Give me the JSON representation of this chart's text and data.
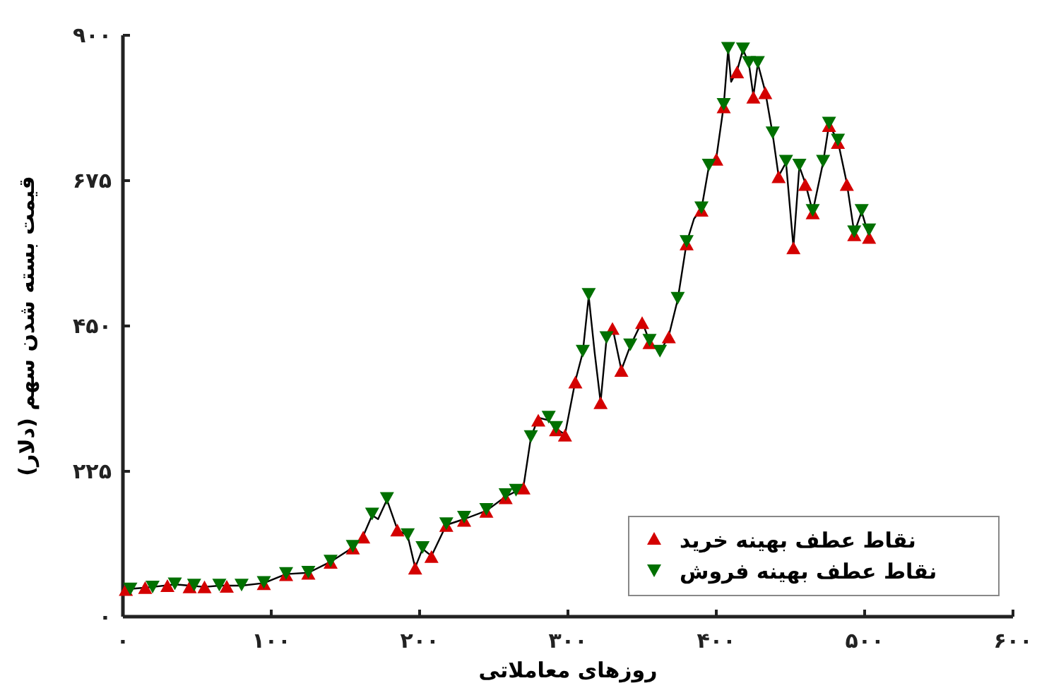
{
  "chart_data": {
    "type": "line",
    "xlabel": "روزهای معاملاتی",
    "ylabel": "قیمت بسته شدن سهم (دلار)",
    "xlim": [
      0,
      600
    ],
    "ylim": [
      0,
      900
    ],
    "xticks": [
      {
        "value": 0,
        "label": "۰"
      },
      {
        "value": 100,
        "label": "۱۰۰"
      },
      {
        "value": 200,
        "label": "۲۰۰"
      },
      {
        "value": 300,
        "label": "۳۰۰"
      },
      {
        "value": 400,
        "label": "۴۰۰"
      },
      {
        "value": 500,
        "label": "۵۰۰"
      },
      {
        "value": 600,
        "label": "۶۰۰"
      }
    ],
    "yticks": [
      {
        "value": 0,
        "label": "۰"
      },
      {
        "value": 225,
        "label": "۲۲۵"
      },
      {
        "value": 450,
        "label": "۴۵۰"
      },
      {
        "value": 675,
        "label": "۶۷۵"
      },
      {
        "value": 900,
        "label": "۹۰۰"
      }
    ],
    "grid": false,
    "legend": "bottom right",
    "series": [
      {
        "color": "#000000",
        "marker": "none",
        "x": [
          0,
          10,
          20,
          35,
          45,
          55,
          65,
          80,
          95,
          110,
          125,
          140,
          155,
          162,
          168,
          172,
          178,
          185,
          192,
          197,
          202,
          208,
          218,
          230,
          245,
          258,
          265,
          270,
          275,
          280,
          287,
          292,
          298,
          305,
          310,
          314,
          318,
          322,
          326,
          330,
          336,
          342,
          350,
          355,
          362,
          368,
          374,
          380,
          385,
          390,
          395,
          400,
          405,
          408,
          410,
          414,
          418,
          422,
          425,
          428,
          433,
          438,
          442,
          447,
          452,
          456,
          460,
          465,
          472,
          476,
          482,
          488,
          493,
          498,
          503
        ],
        "values": [
          42,
          44,
          46,
          50,
          48,
          46,
          48,
          48,
          52,
          66,
          68,
          85,
          107,
          125,
          157,
          151,
          181,
          135,
          125,
          76,
          105,
          94,
          142,
          151,
          164,
          186,
          194,
          201,
          277,
          308,
          304,
          291,
          282,
          365,
          409,
          496,
          409,
          332,
          430,
          448,
          382,
          419,
          457,
          426,
          409,
          435,
          491,
          579,
          616,
          631,
          697,
          710,
          791,
          878,
          828,
          845,
          878,
          856,
          806,
          856,
          813,
          747,
          682,
          703,
          572,
          697,
          671,
          627,
          703,
          762,
          736,
          671,
          594,
          627,
          588
        ]
      },
      {
        "type": "scatter",
        "name": "نقاط عطف بهینه خرید",
        "color": "#d40000",
        "marker": "triangle",
        "x": [
          2,
          15,
          30,
          45,
          55,
          70,
          95,
          110,
          125,
          140,
          155,
          162,
          185,
          197,
          208,
          218,
          230,
          245,
          258,
          270,
          280,
          292,
          298,
          305,
          322,
          330,
          336,
          350,
          355,
          368,
          380,
          390,
          400,
          405,
          414,
          425,
          433,
          442,
          452,
          460,
          465,
          476,
          482,
          488,
          493,
          503
        ],
        "values": [
          41,
          44,
          47,
          45,
          45,
          46,
          50,
          64,
          66,
          83,
          105,
          122,
          133,
          74,
          92,
          140,
          148,
          162,
          183,
          198,
          303,
          288,
          280,
          362,
          330,
          445,
          380,
          454,
          423,
          432,
          576,
          628,
          707,
          788,
          842,
          803,
          810,
          680,
          570,
          668,
          624,
          759,
          733,
          668,
          590,
          586
        ]
      },
      {
        "type": "scatter",
        "name": "نقاط عطف بهینه فروش",
        "color": "#007000",
        "marker": "triangle-down",
        "x": [
          5,
          20,
          35,
          48,
          65,
          80,
          95,
          110,
          125,
          140,
          155,
          168,
          178,
          192,
          202,
          218,
          230,
          245,
          258,
          265,
          275,
          287,
          292,
          310,
          314,
          326,
          342,
          355,
          362,
          374,
          380,
          390,
          395,
          405,
          408,
          418,
          422,
          428,
          438,
          447,
          456,
          465,
          472,
          476,
          482,
          493,
          498,
          503
        ],
        "values": [
          44,
          47,
          52,
          50,
          50,
          50,
          54,
          68,
          70,
          87,
          110,
          160,
          184,
          128,
          108,
          145,
          155,
          167,
          190,
          197,
          280,
          310,
          294,
          412,
          500,
          433,
          422,
          429,
          412,
          494,
          582,
          634,
          700,
          794,
          881,
          880,
          859,
          859,
          750,
          706,
          700,
          630,
          706,
          765,
          739,
          597,
          630,
          600
        ]
      }
    ]
  }
}
